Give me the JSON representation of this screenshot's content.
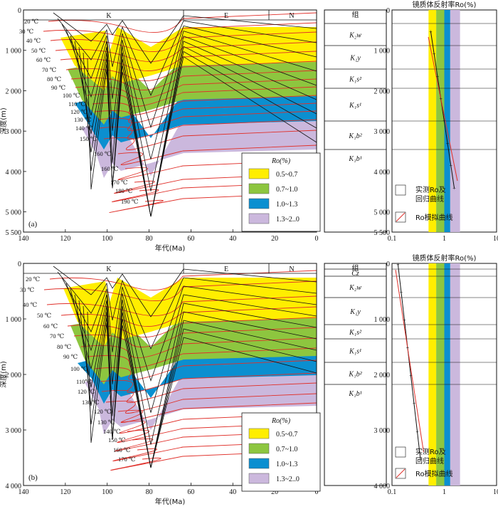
{
  "panels": [
    {
      "id": "a",
      "label": "(a)",
      "periods": [
        "K",
        "E",
        "N"
      ],
      "x_axis": {
        "title": "年代(Ma)",
        "ticks": [
          "140",
          "120",
          "100",
          "80",
          "60",
          "40",
          "20",
          "0"
        ]
      },
      "y_axis": {
        "title": "深度(m)",
        "ticks": [
          "0",
          "1 000",
          "2 000",
          "3 000",
          "4 000",
          "5 000",
          "5 500"
        ]
      },
      "temperatures": [
        "20 ℃",
        "30 ℃",
        "40 ℃",
        "50 ℃",
        "60 ℃",
        "70 ℃",
        "80 ℃",
        "90 ℃",
        "100 ℃",
        "110 ℃",
        "120 ℃",
        "130 ℃",
        "140 ℃",
        "150 ℃",
        "160 ℃",
        "160 ℃",
        "170 ℃",
        "180 ℃",
        "190 ℃"
      ],
      "legend": {
        "title": "Ro(%)",
        "items": [
          "0.5~0.7",
          "0.7~1.0",
          "1.0~1.3",
          "1.3~2..0"
        ]
      },
      "formation_header": "组",
      "formations": [
        "K₂w",
        "K₁y",
        "K₁s²",
        "K₁s¹",
        "K₁b²",
        "K₁b¹"
      ],
      "ro_title": "镜质体反射率Ro(%)",
      "ro_ticks": [
        "0.1",
        "1",
        "10"
      ],
      "ro_depth_ticks": [
        "0",
        "1 000",
        "2 000",
        "3 000",
        "4 000",
        "5 000",
        "5 500"
      ],
      "ro_legend": [
        "实测Ro及",
        "回归曲线",
        "Ro模拟曲线"
      ]
    },
    {
      "id": "b",
      "label": "(b)",
      "periods": [
        "K",
        "E",
        "N"
      ],
      "x_axis": {
        "title": "年代(Ma)",
        "ticks": [
          "140",
          "120",
          "100",
          "80",
          "60",
          "40",
          "20",
          "0"
        ]
      },
      "y_axis": {
        "title": "深度(m)",
        "ticks": [
          "0",
          "1 000",
          "2 000",
          "3 000",
          "4 000"
        ]
      },
      "temperatures": [
        "20 ℃",
        "30 ℃",
        "40 ℃",
        "50 ℃",
        "60 ℃",
        "70 ℃",
        "80 ℃",
        "90 ℃",
        "100 ℃",
        "110℃",
        "120 ℃",
        "130 ℃",
        "120 ℃",
        "130 ℃",
        "140 ℃",
        "150 ℃",
        "160 ℃",
        "170 ℃"
      ],
      "legend": {
        "title": "Ro(%)",
        "items": [
          "0.5~0.7",
          "0.7~1.0",
          "1.0~1.3",
          "1.3~2..0"
        ]
      },
      "formation_header": "组",
      "formations": [
        "Cz",
        "K₂w",
        "K₁y",
        "K₁s²",
        "K₁s¹",
        "K₁b²",
        "K₁b¹"
      ],
      "ro_title": "镜质体反射率Ro(%)",
      "ro_ticks": [
        "0.1",
        "1",
        "10"
      ],
      "ro_depth_ticks": [
        "0",
        "1 000",
        "2 000",
        "3 000",
        "4 000"
      ],
      "ro_legend": [
        "实测Ro及",
        "回归曲线",
        "Ro模拟曲线"
      ]
    }
  ],
  "colors": {
    "zone1": "#ffee00",
    "zone2": "#8dc63f",
    "zone3": "#0b8fd0",
    "zone4": "#cbb8dd",
    "isotherm": "#e0302a",
    "burial": "#111111"
  }
}
